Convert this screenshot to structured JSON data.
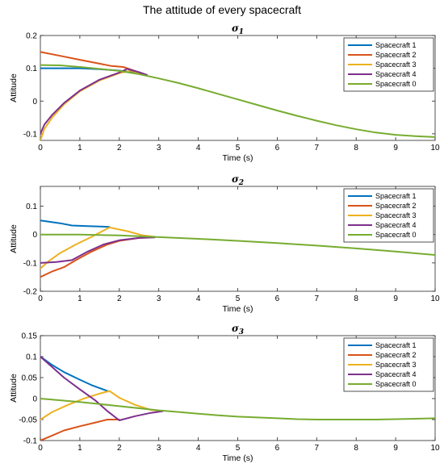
{
  "figure_title": "The attitude  of every spacecraft",
  "colors": {
    "Spacecraft 1": "#0072BD",
    "Spacecraft 2": "#D95319",
    "Spacecraft 3": "#EDB120",
    "Spacecraft 4": "#7E2F8E",
    "Spacecraft 0": "#77AC30"
  },
  "chart_data": [
    {
      "type": "line",
      "title": "σ₁",
      "title_main": "σ",
      "title_sub": "1",
      "xlabel": "Time (s)",
      "ylabel": "Attitude",
      "xlim": [
        0,
        10
      ],
      "ylim": [
        -0.12,
        0.2
      ],
      "xticks": [
        0,
        1,
        2,
        3,
        4,
        5,
        6,
        7,
        8,
        9,
        10
      ],
      "yticks": [
        -0.1,
        0,
        0.1,
        0.2
      ],
      "ytick_labels": [
        "-0.1",
        "0",
        "0.1",
        "0.2"
      ],
      "legend": "top-right",
      "series": [
        {
          "name": "Spacecraft 1",
          "x": [
            0,
            0.5,
            1,
            1.5,
            2,
            2.2,
            2.5
          ],
          "y": [
            0.1,
            0.1,
            0.1,
            0.097,
            0.093,
            0.09,
            0.084
          ]
        },
        {
          "name": "Spacecraft 2",
          "x": [
            0,
            0.5,
            1,
            1.5,
            1.8,
            2.1,
            2.3,
            2.6
          ],
          "y": [
            0.15,
            0.138,
            0.126,
            0.114,
            0.107,
            0.104,
            0.096,
            0.083
          ]
        },
        {
          "name": "Spacecraft 3",
          "x": [
            0,
            0.1,
            0.3,
            0.6,
            1,
            1.5,
            2,
            2.3,
            2.5
          ],
          "y": [
            -0.12,
            -0.085,
            -0.05,
            -0.01,
            0.03,
            0.063,
            0.085,
            0.093,
            0.085
          ]
        },
        {
          "name": "Spacecraft 4",
          "x": [
            0,
            0.1,
            0.3,
            0.6,
            1,
            1.5,
            2,
            2.2,
            2.5,
            2.7
          ],
          "y": [
            -0.1,
            -0.072,
            -0.042,
            -0.006,
            0.032,
            0.065,
            0.087,
            0.098,
            0.088,
            0.08
          ]
        },
        {
          "name": "Spacecraft 0",
          "x": [
            0,
            0.5,
            1,
            1.5,
            2,
            2.5,
            3,
            3.5,
            4,
            4.5,
            5,
            5.5,
            6,
            6.5,
            7,
            7.5,
            8,
            8.5,
            9,
            9.5,
            10
          ],
          "y": [
            0.11,
            0.109,
            0.104,
            0.098,
            0.092,
            0.082,
            0.069,
            0.055,
            0.039,
            0.022,
            0.005,
            -0.012,
            -0.029,
            -0.045,
            -0.06,
            -0.074,
            -0.086,
            -0.096,
            -0.103,
            -0.107,
            -0.11
          ]
        }
      ]
    },
    {
      "type": "line",
      "title": "σ₂",
      "title_main": "σ",
      "title_sub": "2",
      "xlabel": "Time (s)",
      "ylabel": "Attitude",
      "xlim": [
        0,
        10
      ],
      "ylim": [
        -0.2,
        0.17
      ],
      "xticks": [
        0,
        1,
        2,
        3,
        4,
        5,
        6,
        7,
        8,
        9,
        10
      ],
      "yticks": [
        -0.2,
        -0.1,
        0,
        0.1
      ],
      "ytick_labels": [
        "-0.2",
        "-0.1",
        "0",
        "0.1"
      ],
      "legend": "top-right",
      "series": [
        {
          "name": "Spacecraft 1",
          "x": [
            0,
            0.5,
            0.8,
            1.2,
            1.75
          ],
          "y": [
            0.05,
            0.04,
            0.032,
            0.03,
            0.027
          ]
        },
        {
          "name": "Spacecraft 2",
          "x": [
            0,
            0.3,
            0.6,
            0.9,
            1.3,
            1.7,
            2,
            2.5,
            2.8
          ],
          "y": [
            -0.15,
            -0.13,
            -0.115,
            -0.09,
            -0.06,
            -0.035,
            -0.022,
            -0.012,
            -0.01
          ]
        },
        {
          "name": "Spacecraft 3",
          "x": [
            0,
            0.2,
            0.5,
            0.9,
            1.3,
            1.75,
            2.2,
            2.6,
            2.9
          ],
          "y": [
            -0.12,
            -0.095,
            -0.065,
            -0.035,
            -0.008,
            0.025,
            0.012,
            -0.003,
            -0.008
          ]
        },
        {
          "name": "Spacecraft 4",
          "x": [
            0,
            0.4,
            0.8,
            1.2,
            1.6,
            2,
            2.5,
            2.9
          ],
          "y": [
            -0.1,
            -0.097,
            -0.09,
            -0.06,
            -0.035,
            -0.02,
            -0.012,
            -0.01
          ]
        },
        {
          "name": "Spacecraft 0",
          "x": [
            0,
            1,
            2,
            3,
            4,
            5,
            6,
            7,
            8,
            9,
            10
          ],
          "y": [
            0,
            0,
            -0.003,
            -0.009,
            -0.015,
            -0.022,
            -0.03,
            -0.039,
            -0.049,
            -0.06,
            -0.072
          ]
        }
      ]
    },
    {
      "type": "line",
      "title": "σ₃",
      "title_main": "σ",
      "title_sub": "3",
      "xlabel": "Time (s)",
      "ylabel": "Attitude",
      "xlim": [
        0,
        10
      ],
      "ylim": [
        -0.1,
        0.15
      ],
      "xticks": [
        0,
        1,
        2,
        3,
        4,
        5,
        6,
        7,
        8,
        9,
        10
      ],
      "yticks": [
        -0.1,
        -0.05,
        0,
        0.05,
        0.1,
        0.15
      ],
      "ytick_labels": [
        "-0.1",
        "-0.05",
        "0",
        "0.05",
        "0.1",
        "0.15"
      ],
      "legend": "top-right",
      "series": [
        {
          "name": "Spacecraft 1",
          "x": [
            0,
            0.3,
            0.6,
            1,
            1.3,
            1.7
          ],
          "y": [
            0.1,
            0.08,
            0.063,
            0.045,
            0.032,
            0.018
          ]
        },
        {
          "name": "Spacecraft 2",
          "x": [
            0,
            0.3,
            0.6,
            1,
            1.4,
            1.7,
            2
          ],
          "y": [
            -0.1,
            -0.088,
            -0.076,
            -0.066,
            -0.057,
            -0.05,
            -0.05
          ]
        },
        {
          "name": "Spacecraft 3",
          "x": [
            0,
            0.3,
            0.7,
            1.1,
            1.5,
            1.75,
            2,
            2.4,
            2.8,
            3.1
          ],
          "y": [
            -0.05,
            -0.032,
            -0.015,
            0,
            0.012,
            0.018,
            0.002,
            -0.015,
            -0.027,
            -0.03
          ]
        },
        {
          "name": "Spacecraft 4",
          "x": [
            0,
            0.3,
            0.6,
            1,
            1.4,
            1.7,
            2,
            2.4,
            2.8,
            3.1
          ],
          "y": [
            0.1,
            0.075,
            0.05,
            0.022,
            -0.005,
            -0.03,
            -0.052,
            -0.042,
            -0.034,
            -0.03
          ]
        },
        {
          "name": "Spacecraft 0",
          "x": [
            0,
            0.5,
            1,
            1.5,
            2,
            2.5,
            3,
            3.5,
            4,
            4.5,
            5,
            5.5,
            6,
            6.5,
            7,
            7.5,
            8,
            8.5,
            9,
            9.5,
            10
          ],
          "y": [
            0,
            -0.004,
            -0.008,
            -0.013,
            -0.018,
            -0.023,
            -0.028,
            -0.032,
            -0.036,
            -0.04,
            -0.043,
            -0.045,
            -0.047,
            -0.049,
            -0.05,
            -0.05,
            -0.05,
            -0.05,
            -0.049,
            -0.048,
            -0.047
          ]
        }
      ]
    }
  ]
}
